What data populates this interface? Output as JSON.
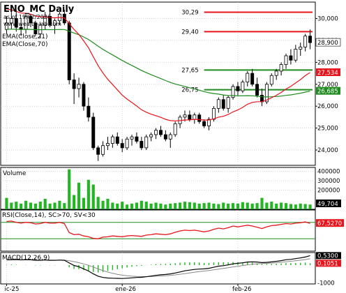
{
  "header": {
    "symbol": "ENO_MC Daily",
    "asof": "as of 19/02/2026",
    "site": "www.wealth-lab.com"
  },
  "colors": {
    "up": "#ffffff",
    "down": "#000000",
    "ema21": "#e8141c",
    "ema70": "#1e8c1e",
    "level_red": "#e8141c",
    "level_green": "#1e8c1e",
    "volume": "#22b622",
    "rsi": "#e8141c",
    "rsi_bands": "#1e8c1e",
    "macd_hist": "#22b622",
    "grid": "#bfbfbf"
  },
  "chart_data": [
    {
      "type": "candlestick",
      "panel": "price",
      "x_tick_labels": [
        "ic-25",
        "ene-26",
        "feb-26"
      ],
      "y_ticks": [
        24000,
        25000,
        26000,
        27000,
        28000,
        29000,
        30000
      ],
      "y_tick_labels": [
        "24,000",
        "25,000",
        "26,000",
        "27,000",
        "28,000",
        "29,000",
        "30,000"
      ],
      "ylim": [
        23300,
        30750
      ],
      "indicator_labels": [
        "EMA(Close,21)",
        "EMA(Close,70)"
      ],
      "last_value_tags": [
        {
          "value": 28900,
          "label": "28,900",
          "series": "price"
        },
        {
          "value": 27534,
          "label": "27,534",
          "series": "ema21"
        },
        {
          "value": 26685,
          "label": "26,685",
          "series": "ema70"
        }
      ],
      "levels": [
        {
          "value": 30290,
          "label": "30,29",
          "color": "red"
        },
        {
          "value": 29400,
          "label": "29,40",
          "color": "red"
        },
        {
          "value": 27650,
          "label": "27,65",
          "color": "green"
        },
        {
          "value": 26750,
          "label": "26,75",
          "color": "green"
        }
      ],
      "candles": [
        [
          29500,
          30100,
          29300,
          29800
        ],
        [
          29800,
          30300,
          29500,
          30000
        ],
        [
          30000,
          30400,
          29400,
          29600
        ],
        [
          29600,
          30000,
          29200,
          29500
        ],
        [
          29500,
          30200,
          29300,
          30100
        ],
        [
          30100,
          30200,
          29600,
          29800
        ],
        [
          29800,
          29900,
          29200,
          29300
        ],
        [
          29300,
          29800,
          29100,
          29700
        ],
        [
          29700,
          30300,
          29500,
          30100
        ],
        [
          30100,
          30300,
          29600,
          29700
        ],
        [
          29700,
          30000,
          29300,
          29900
        ],
        [
          29900,
          30300,
          29700,
          30200
        ],
        [
          30200,
          30400,
          29700,
          29800
        ],
        [
          29800,
          29900,
          27000,
          27200
        ],
        [
          27200,
          27500,
          26100,
          26800
        ],
        [
          26800,
          27300,
          26400,
          27000
        ],
        [
          27000,
          27100,
          25800,
          26000
        ],
        [
          26000,
          26400,
          25300,
          25500
        ],
        [
          25500,
          25700,
          24000,
          24100
        ],
        [
          24100,
          24200,
          23500,
          23800
        ],
        [
          23800,
          24400,
          23700,
          24200
        ],
        [
          24200,
          24600,
          24000,
          24300
        ],
        [
          24300,
          24700,
          24100,
          24600
        ],
        [
          24600,
          24800,
          24200,
          24300
        ],
        [
          24300,
          24500,
          23900,
          24100
        ],
        [
          24100,
          24600,
          24000,
          24500
        ],
        [
          24500,
          24700,
          24200,
          24600
        ],
        [
          24600,
          24800,
          24300,
          24400
        ],
        [
          24400,
          24600,
          24000,
          24100
        ],
        [
          24100,
          24700,
          24000,
          24600
        ],
        [
          24600,
          24800,
          24400,
          24700
        ],
        [
          24700,
          25000,
          24500,
          24900
        ],
        [
          24900,
          25100,
          24600,
          24700
        ],
        [
          24700,
          24900,
          24400,
          24500
        ],
        [
          24500,
          24800,
          24100,
          24700
        ],
        [
          24700,
          25300,
          24600,
          25200
        ],
        [
          25200,
          25600,
          25000,
          25500
        ],
        [
          25500,
          25800,
          25300,
          25600
        ],
        [
          25600,
          25800,
          25300,
          25400
        ],
        [
          25400,
          25700,
          25200,
          25600
        ],
        [
          25600,
          25700,
          25200,
          25300
        ],
        [
          25300,
          25400,
          25000,
          25100
        ],
        [
          25100,
          25500,
          24900,
          25400
        ],
        [
          25400,
          26000,
          25300,
          25900
        ],
        [
          25900,
          26400,
          25700,
          26300
        ],
        [
          26300,
          26500,
          25800,
          25900
        ],
        [
          25900,
          26500,
          25700,
          26400
        ],
        [
          26400,
          27000,
          26300,
          26900
        ],
        [
          26900,
          27100,
          26500,
          26700
        ],
        [
          26700,
          27200,
          26600,
          27100
        ],
        [
          27100,
          27600,
          26900,
          27500
        ],
        [
          27500,
          27700,
          26900,
          27000
        ],
        [
          27000,
          27300,
          26400,
          26500
        ],
        [
          26500,
          26800,
          26000,
          26200
        ],
        [
          26200,
          27100,
          26100,
          27000
        ],
        [
          27000,
          27500,
          26900,
          27400
        ],
        [
          27400,
          27700,
          27200,
          27600
        ],
        [
          27600,
          28000,
          27400,
          27900
        ],
        [
          27900,
          28400,
          27700,
          28300
        ],
        [
          28300,
          28600,
          27900,
          28100
        ],
        [
          28100,
          28800,
          28000,
          28600
        ],
        [
          28600,
          28900,
          28300,
          28700
        ],
        [
          28700,
          29300,
          28500,
          29200
        ],
        [
          29200,
          29500,
          28600,
          28900
        ]
      ]
    },
    {
      "type": "bar",
      "panel": "volume",
      "title": "Volume",
      "y_ticks": [
        200000,
        300000,
        400000
      ],
      "y_tick_labels": [
        "200000",
        "300000",
        "400000"
      ],
      "ylim": [
        0,
        440000
      ],
      "last_value_label": "49,704",
      "values": [
        120000,
        70000,
        80000,
        60000,
        90000,
        70000,
        60000,
        80000,
        110000,
        60000,
        70000,
        90000,
        65000,
        420000,
        150000,
        280000,
        120000,
        310000,
        260000,
        130000,
        90000,
        110000,
        70000,
        60000,
        80000,
        50000,
        60000,
        70000,
        90000,
        80000,
        60000,
        70000,
        60000,
        50000,
        60000,
        65000,
        70000,
        80000,
        75000,
        70000,
        60000,
        65000,
        70000,
        60000,
        55000,
        70000,
        60000,
        65000,
        60000,
        75000,
        70000,
        60000,
        65000,
        120000,
        70000,
        80000,
        60000,
        70000,
        65000,
        55000,
        50000,
        60000,
        55000,
        49704
      ]
    },
    {
      "type": "line",
      "panel": "rsi",
      "title": "RSI(Close,14), SC>70, SV<30",
      "ylim": [
        0,
        100
      ],
      "bands": [
        30,
        70
      ],
      "last_value_label": "67,5270",
      "values": [
        72,
        73,
        70,
        68,
        70,
        69,
        66,
        67,
        70,
        68,
        68,
        70,
        67,
        45,
        40,
        41,
        37,
        35,
        31,
        30,
        34,
        35,
        37,
        36,
        35,
        37,
        38,
        37,
        36,
        39,
        40,
        42,
        41,
        40,
        42,
        46,
        49,
        51,
        50,
        51,
        49,
        47,
        49,
        53,
        56,
        54,
        57,
        61,
        59,
        61,
        63,
        61,
        58,
        55,
        59,
        62,
        63,
        65,
        67,
        66,
        68,
        69,
        71,
        67.527
      ]
    },
    {
      "type": "line",
      "panel": "macd",
      "title": "MACD(12,26,9)",
      "y_ticks": [
        -1000
      ],
      "y_tick_labels": [
        "-1000"
      ],
      "ylim": [
        -1050,
        700
      ],
      "last_value_labels": [
        "0,5300",
        "0,1051"
      ],
      "macd": [
        300,
        320,
        310,
        290,
        300,
        295,
        270,
        265,
        285,
        270,
        265,
        280,
        270,
        120,
        -20,
        -90,
        -210,
        -330,
        -490,
        -620,
        -690,
        -720,
        -730,
        -740,
        -745,
        -730,
        -710,
        -690,
        -680,
        -650,
        -610,
        -570,
        -540,
        -520,
        -490,
        -440,
        -380,
        -320,
        -280,
        -240,
        -220,
        -210,
        -180,
        -120,
        -60,
        -30,
        10,
        70,
        100,
        130,
        170,
        180,
        170,
        140,
        150,
        180,
        210,
        250,
        300,
        320,
        360,
        400,
        450,
        530
      ],
      "signal": [
        280,
        285,
        290,
        290,
        292,
        293,
        289,
        284,
        284,
        281,
        278,
        278,
        277,
        245,
        193,
        137,
        67,
        -12,
        -108,
        -210,
        -306,
        -389,
        -457,
        -514,
        -560,
        -594,
        -617,
        -632,
        -641,
        -643,
        -636,
        -623,
        -607,
        -590,
        -570,
        -544,
        -511,
        -473,
        -434,
        -395,
        -360,
        -330,
        -300,
        -264,
        -223,
        -184,
        -145,
        -102,
        -62,
        -23,
        16,
        49,
        73,
        86,
        99,
        115,
        134,
        157,
        186,
        213,
        242,
        274,
        309,
        353
      ],
      "histogram": [
        20,
        35,
        20,
        0,
        8,
        2,
        -19,
        -19,
        1,
        -11,
        -13,
        2,
        -7,
        -125,
        -213,
        -227,
        -277,
        -318,
        -382,
        -410,
        -384,
        -331,
        -273,
        -226,
        -185,
        -136,
        -93,
        -58,
        -39,
        -7,
        26,
        53,
        67,
        70,
        80,
        104,
        131,
        153,
        154,
        155,
        140,
        120,
        120,
        144,
        163,
        154,
        155,
        172,
        162,
        153,
        154,
        131,
        97,
        54,
        51,
        65,
        76,
        93,
        114,
        107,
        118,
        126,
        141,
        105
      ],
      "x_tick_labels": [
        "ic-25",
        "ene-26",
        "feb-26"
      ]
    }
  ]
}
